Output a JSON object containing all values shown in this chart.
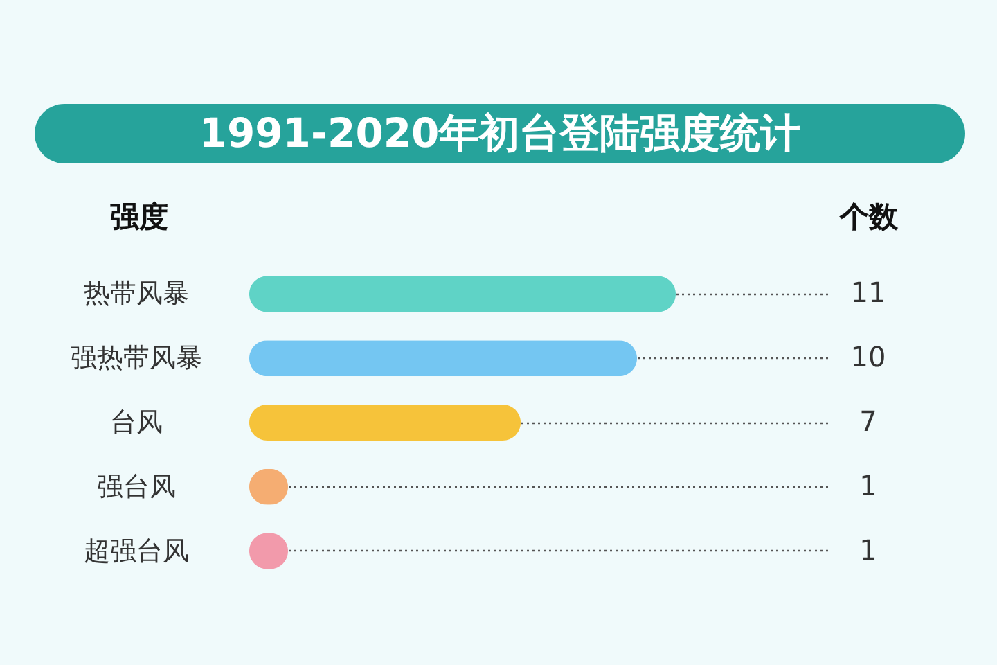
{
  "chart_data": {
    "type": "bar",
    "title": "1991-2020年初台登陆强度统计",
    "ylabel": "强度",
    "xlabel": "个数",
    "categories": [
      "热带风暴",
      "强热带风暴",
      "台风",
      "强台风",
      "超强台风"
    ],
    "values": [
      11,
      10,
      7,
      1,
      1
    ],
    "colors": [
      "#5fd3c6",
      "#74c6f2",
      "#f6c33a",
      "#f5ad72",
      "#f29aab"
    ],
    "orientation": "horizontal",
    "xlim": [
      0,
      15
    ],
    "data_labels": true,
    "grid": "y",
    "tick_labels": "y"
  }
}
